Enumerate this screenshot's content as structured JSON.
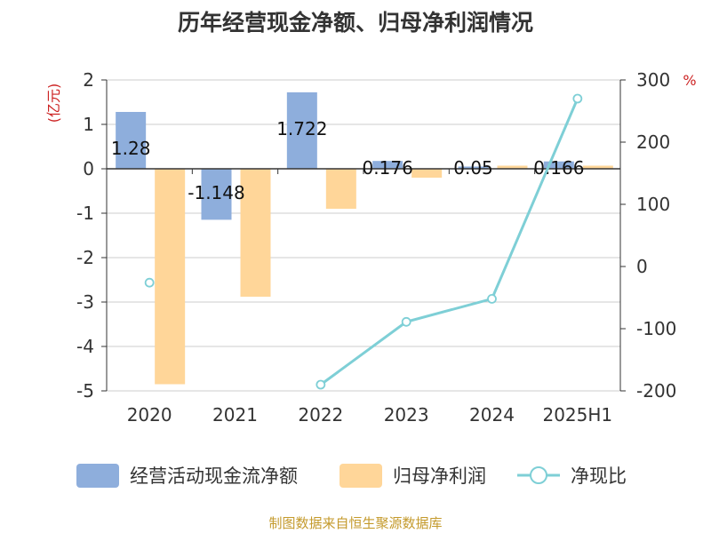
{
  "title": "历年经营现金净额、归母净利润情况",
  "source": "制图数据来自恒生聚源数据库",
  "colors": {
    "cash_bar": "#8eaedc",
    "profit_bar": "#ffd699",
    "ratio_line": "#7ecfd6",
    "grid": "#cccccc",
    "axis": "#333333",
    "unit": "#cc2222"
  },
  "chart_data": {
    "type": "bar",
    "categories": [
      "2020",
      "2021",
      "2022",
      "2023",
      "2024",
      "2025H1"
    ],
    "series": [
      {
        "name": "经营活动现金流净额",
        "type": "bar",
        "axis": "left",
        "values": [
          1.28,
          -1.148,
          1.722,
          0.176,
          0.05,
          0.166
        ],
        "labels": [
          "1.28",
          "-1.148",
          "1.722",
          "0.176",
          "0.05",
          "0.166"
        ]
      },
      {
        "name": "归母净利润",
        "type": "bar",
        "axis": "left",
        "values": [
          -4.85,
          -2.88,
          -0.9,
          -0.2,
          0.07,
          0.07
        ]
      },
      {
        "name": "净现比",
        "type": "line",
        "axis": "right",
        "values": [
          -26,
          null,
          -190,
          -89,
          -52,
          270
        ]
      }
    ],
    "left_axis": {
      "unit": "(亿元)",
      "ylim": [
        -5,
        2
      ],
      "ticks": [
        "2",
        "1",
        "0",
        "-1",
        "-2",
        "-3",
        "-4",
        "-5"
      ]
    },
    "right_axis": {
      "unit": "%",
      "ylim": [
        -200,
        300
      ],
      "ticks": [
        "300",
        "200",
        "100",
        "0",
        "-100",
        "-200"
      ]
    },
    "grid": true,
    "legend_position": "bottom"
  }
}
